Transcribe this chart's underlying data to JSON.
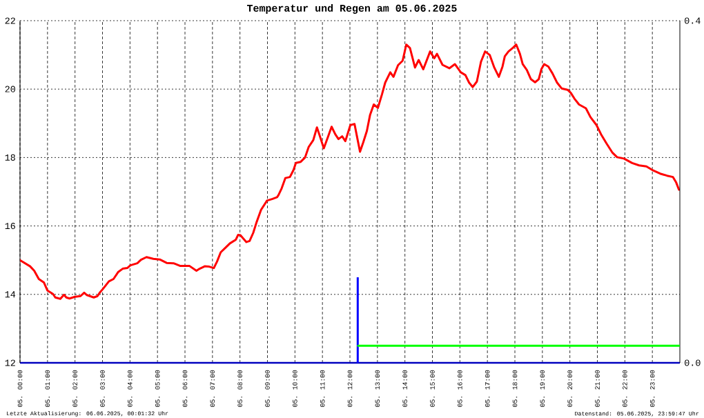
{
  "chart_data": {
    "type": "line",
    "title": "Temperatur und Regen am 05.06.2025",
    "xlim": [
      "2025-06-05T00:00",
      "2025-06-06T00:00"
    ],
    "xticks": [
      {
        "value": "2025-06-05T00:00",
        "label": "05. 00:00"
      },
      {
        "value": "2025-06-05T01:00",
        "label": "05. 01:00"
      },
      {
        "value": "2025-06-05T02:00",
        "label": "05. 02:00"
      },
      {
        "value": "2025-06-05T03:00",
        "label": "05. 03:00"
      },
      {
        "value": "2025-06-05T04:00",
        "label": "05. 04:00"
      },
      {
        "value": "2025-06-05T05:00",
        "label": "05. 05:00"
      },
      {
        "value": "2025-06-05T06:00",
        "label": "05. 06:00"
      },
      {
        "value": "2025-06-05T07:00",
        "label": "05. 07:00"
      },
      {
        "value": "2025-06-05T08:00",
        "label": "05. 08:00"
      },
      {
        "value": "2025-06-05T09:00",
        "label": "05. 09:00"
      },
      {
        "value": "2025-06-05T10:00",
        "label": "05. 10:00"
      },
      {
        "value": "2025-06-05T11:00",
        "label": "05. 11:00"
      },
      {
        "value": "2025-06-05T12:00",
        "label": "05. 12:00"
      },
      {
        "value": "2025-06-05T13:00",
        "label": "05. 13:00"
      },
      {
        "value": "2025-06-05T14:00",
        "label": "05. 14:00"
      },
      {
        "value": "2025-06-05T15:00",
        "label": "05. 15:00"
      },
      {
        "value": "2025-06-05T16:00",
        "label": "05. 16:00"
      },
      {
        "value": "2025-06-05T17:00",
        "label": "05. 17:00"
      },
      {
        "value": "2025-06-05T18:00",
        "label": "05. 18:00"
      },
      {
        "value": "2025-06-05T19:00",
        "label": "05. 19:00"
      },
      {
        "value": "2025-06-05T20:00",
        "label": "05. 20:00"
      },
      {
        "value": "2025-06-05T21:00",
        "label": "05. 21:00"
      },
      {
        "value": "2025-06-05T22:00",
        "label": "05. 22:00"
      },
      {
        "value": "2025-06-05T23:00",
        "label": "05. 23:00"
      }
    ],
    "ylim": [
      12,
      22
    ],
    "yticks": [
      12,
      14,
      16,
      18,
      20,
      22
    ],
    "y2lim": [
      0,
      0.4
    ],
    "y2ticks": [
      {
        "value": 0,
        "label": "0.0"
      },
      {
        "value": 0.4,
        "label": "0.4"
      }
    ],
    "grid": true,
    "annotations": [
      "Letzte Aktualisierung: 06.06.2025, 00:01:32 Uhr",
      "Datenstand: 05.06.2025, 23:59:47 Uhr"
    ],
    "series": [
      {
        "color": "#ff0000",
        "x": [
          "2025-06-05T00:00",
          "2025-06-05T00:05",
          "2025-06-05T00:22",
          "2025-06-05T00:31",
          "2025-06-05T00:41",
          "2025-06-05T00:52",
          "2025-06-05T01:00",
          "2025-06-05T01:12",
          "2025-06-05T01:17",
          "2025-06-05T01:28",
          "2025-06-05T01:36",
          "2025-06-05T01:41",
          "2025-06-05T01:48",
          "2025-06-05T02:00",
          "2025-06-05T02:12",
          "2025-06-05T02:20",
          "2025-06-05T02:26",
          "2025-06-05T02:41",
          "2025-06-05T02:49",
          "2025-06-05T02:54",
          "2025-06-05T03:01",
          "2025-06-05T03:14",
          "2025-06-05T03:24",
          "2025-06-05T03:34",
          "2025-06-05T03:44",
          "2025-06-05T03:54",
          "2025-06-05T04:01",
          "2025-06-05T04:16",
          "2025-06-05T04:24",
          "2025-06-05T04:36",
          "2025-06-05T04:51",
          "2025-06-05T05:05",
          "2025-06-05T05:20",
          "2025-06-05T05:35",
          "2025-06-05T05:50",
          "2025-06-05T06:10",
          "2025-06-05T06:25",
          "2025-06-05T06:32",
          "2025-06-05T06:43",
          "2025-06-05T06:53",
          "2025-06-05T07:03",
          "2025-06-05T07:10",
          "2025-06-05T07:18",
          "2025-06-05T07:28",
          "2025-06-05T07:38",
          "2025-06-05T07:51",
          "2025-06-05T07:56",
          "2025-06-05T08:01",
          "2025-06-05T08:14",
          "2025-06-05T08:21",
          "2025-06-05T08:29",
          "2025-06-05T08:36",
          "2025-06-05T08:46",
          "2025-06-05T08:59",
          "2025-06-05T09:11",
          "2025-06-05T09:21",
          "2025-06-05T09:24",
          "2025-06-05T09:31",
          "2025-06-05T09:39",
          "2025-06-05T09:49",
          "2025-06-05T09:57",
          "2025-06-05T10:02",
          "2025-06-05T10:12",
          "2025-06-05T10:22",
          "2025-06-05T10:30",
          "2025-06-05T10:40",
          "2025-06-05T10:48",
          "2025-06-05T10:54",
          "2025-06-05T11:03",
          "2025-06-05T11:13",
          "2025-06-05T11:20",
          "2025-06-05T11:28",
          "2025-06-05T11:35",
          "2025-06-05T11:43",
          "2025-06-05T11:50",
          "2025-06-05T12:01",
          "2025-06-05T12:10",
          "2025-06-05T12:15",
          "2025-06-05T12:22",
          "2025-06-05T12:29",
          "2025-06-05T12:37",
          "2025-06-05T12:44",
          "2025-06-05T12:52",
          "2025-06-05T13:01",
          "2025-06-05T13:10",
          "2025-06-05T13:17",
          "2025-06-05T13:28",
          "2025-06-05T13:35",
          "2025-06-05T13:45",
          "2025-06-05T13:55",
          "2025-06-05T14:03",
          "2025-06-05T14:11",
          "2025-06-05T14:22",
          "2025-06-05T14:30",
          "2025-06-05T14:40",
          "2025-06-05T14:55",
          "2025-06-05T15:04",
          "2025-06-05T15:10",
          "2025-06-05T15:22",
          "2025-06-05T15:37",
          "2025-06-05T15:49",
          "2025-06-05T16:02",
          "2025-06-05T16:12",
          "2025-06-05T16:20",
          "2025-06-05T16:28",
          "2025-06-05T16:37",
          "2025-06-05T16:46",
          "2025-06-05T16:55",
          "2025-06-05T17:05",
          "2025-06-05T17:15",
          "2025-06-05T17:25",
          "2025-06-05T17:33",
          "2025-06-05T17:38",
          "2025-06-05T17:46",
          "2025-06-05T17:56",
          "2025-06-05T18:03",
          "2025-06-05T18:11",
          "2025-06-05T18:17",
          "2025-06-05T18:26",
          "2025-06-05T18:35",
          "2025-06-05T18:44",
          "2025-06-05T18:52",
          "2025-06-05T18:58",
          "2025-06-05T19:04",
          "2025-06-05T19:13",
          "2025-06-05T19:22",
          "2025-06-05T19:32",
          "2025-06-05T19:42",
          "2025-06-05T19:55",
          "2025-06-05T20:02",
          "2025-06-05T20:10",
          "2025-06-05T20:20",
          "2025-06-05T20:35",
          "2025-06-05T20:45",
          "2025-06-05T20:58",
          "2025-06-05T21:08",
          "2025-06-05T21:20",
          "2025-06-05T21:33",
          "2025-06-05T21:43",
          "2025-06-05T21:58",
          "2025-06-05T22:16",
          "2025-06-05T22:31",
          "2025-06-05T22:47",
          "2025-06-05T23:02",
          "2025-06-05T23:17",
          "2025-06-05T23:32",
          "2025-06-05T23:45",
          "2025-06-05T23:52",
          "2025-06-05T23:58"
        ],
        "values": [
          15.0,
          14.96,
          14.82,
          14.69,
          14.45,
          14.35,
          14.11,
          14.01,
          13.91,
          13.87,
          13.99,
          13.91,
          13.88,
          13.93,
          13.95,
          14.05,
          13.98,
          13.91,
          13.95,
          14.05,
          14.16,
          14.38,
          14.45,
          14.65,
          14.75,
          14.77,
          14.85,
          14.91,
          15.01,
          15.09,
          15.04,
          15.02,
          14.92,
          14.91,
          14.83,
          14.83,
          14.69,
          14.75,
          14.82,
          14.81,
          14.77,
          14.96,
          15.23,
          15.36,
          15.49,
          15.6,
          15.74,
          15.73,
          15.53,
          15.56,
          15.8,
          16.1,
          16.47,
          16.74,
          16.79,
          16.84,
          16.9,
          17.1,
          17.4,
          17.43,
          17.64,
          17.84,
          17.87,
          18.0,
          18.31,
          18.51,
          18.88,
          18.64,
          18.27,
          18.64,
          18.9,
          18.68,
          18.54,
          18.62,
          18.48,
          18.95,
          18.98,
          18.64,
          18.17,
          18.44,
          18.78,
          19.25,
          19.55,
          19.45,
          19.85,
          20.19,
          20.49,
          20.36,
          20.7,
          20.83,
          21.3,
          21.2,
          20.63,
          20.85,
          20.58,
          21.1,
          20.9,
          21.03,
          20.71,
          20.61,
          20.73,
          20.49,
          20.41,
          20.19,
          20.06,
          20.22,
          20.8,
          21.1,
          21.0,
          20.63,
          20.36,
          20.66,
          20.96,
          21.1,
          21.21,
          21.3,
          21.03,
          20.73,
          20.56,
          20.29,
          20.2,
          20.29,
          20.59,
          20.73,
          20.66,
          20.46,
          20.19,
          20.02,
          19.98,
          19.89,
          19.72,
          19.55,
          19.44,
          19.18,
          18.95,
          18.68,
          18.41,
          18.14,
          18.01,
          17.97,
          17.84,
          17.77,
          17.74,
          17.62,
          17.53,
          17.47,
          17.43,
          17.27,
          17.06
        ]
      },
      {
        "type": "bar",
        "axis": "y2",
        "color": "#0000ff",
        "x": [
          "2025-06-05T12:17"
        ],
        "values": [
          0.1
        ]
      },
      {
        "type": "line",
        "axis": "y2",
        "color": "#00ff00",
        "x": [
          "2025-06-05T12:18",
          "2025-06-06T00:00"
        ],
        "values": [
          0.02,
          0.02
        ]
      }
    ]
  }
}
